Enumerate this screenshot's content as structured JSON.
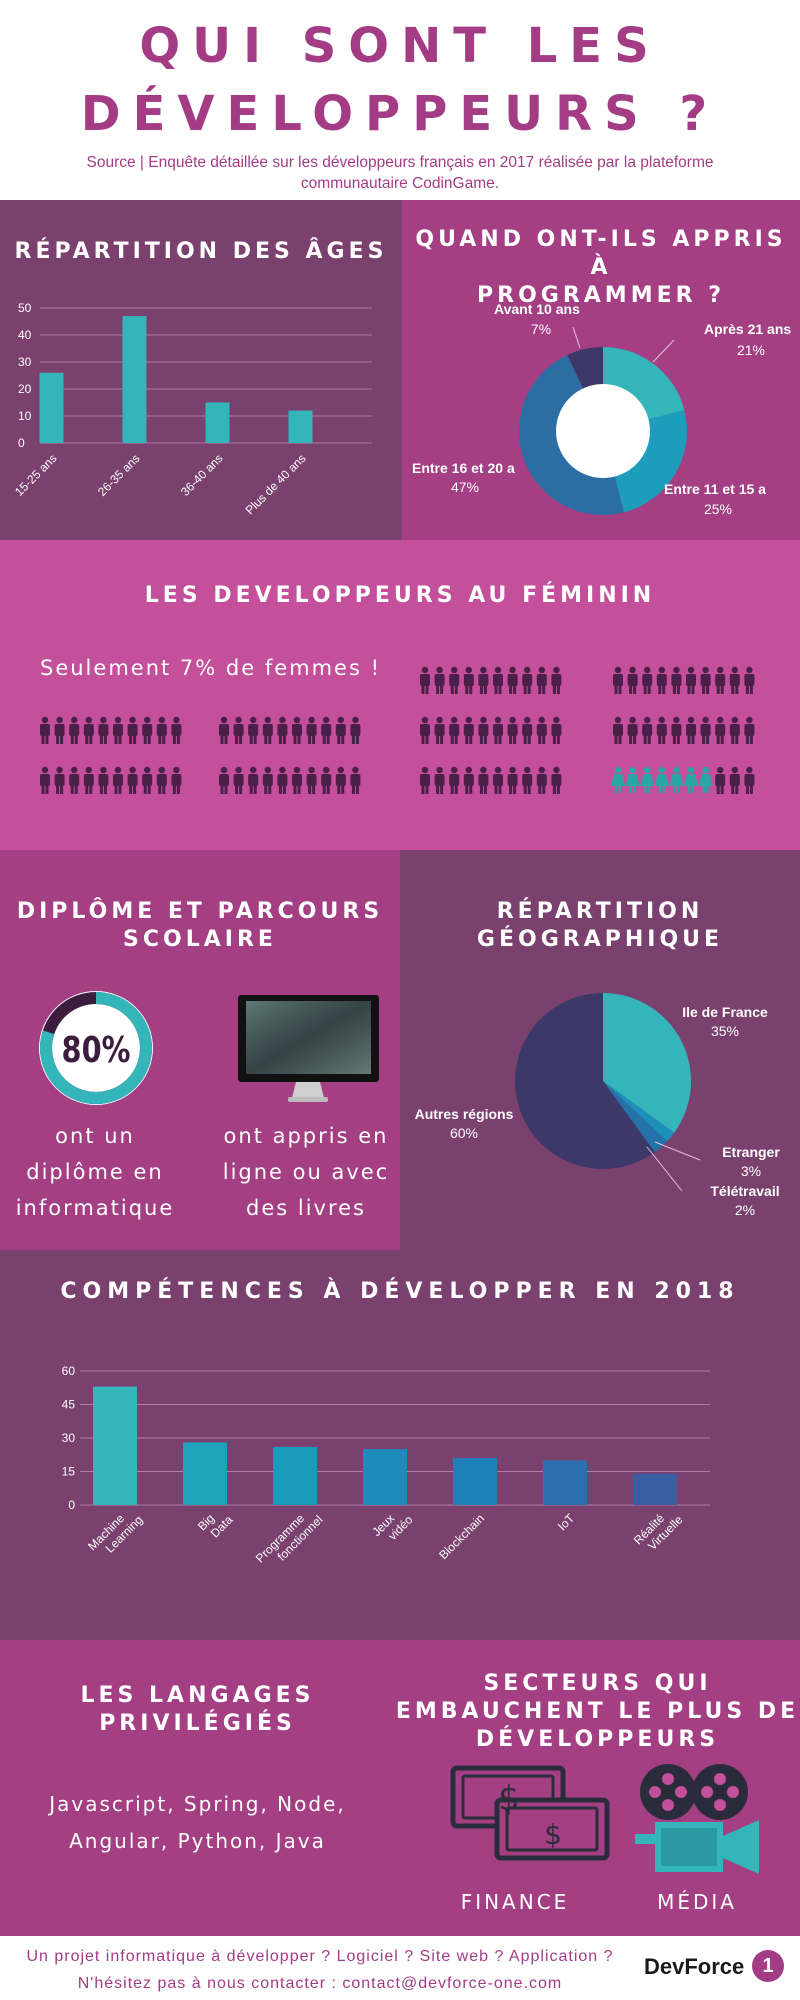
{
  "header": {
    "title_line1": "QUI SONT LES",
    "title_line2": "DÉVELOPPEURS ?",
    "source_line1": "Source | Enquête détaillée sur les développeurs français en 2017 réalisée par la plateforme",
    "source_line2": "communautaire CodinGame."
  },
  "ages": {
    "title": "RÉPARTITION DES ÂGES"
  },
  "learn": {
    "title_line1": "QUAND ONT-ILS APPRIS À",
    "title_line2": "PROGRAMMER ?",
    "labels": [
      {
        "name": "Avant 10 ans",
        "pct": "7%"
      },
      {
        "name": "Après 21 ans",
        "pct": "21%"
      },
      {
        "name": "Entre 11 et 15 a",
        "pct": "25%"
      },
      {
        "name": "Entre 16 et 20 a",
        "pct": "47%"
      }
    ]
  },
  "women": {
    "title": "LES DEVELOPPEURS AU FÉMININ",
    "subtitle": "Seulement 7% de femmes !",
    "total_people": 100,
    "women_count": 7
  },
  "diploma": {
    "title_line1": "DIPLÔME ET PARCOURS",
    "title_line2": "SCOLAIRE",
    "percent_label": "80%",
    "percent_value": 0.8,
    "text1": [
      "ont un",
      "diplôme en",
      "informatique"
    ],
    "text2": [
      "ont appris en",
      "ligne ou avec",
      "des livres"
    ]
  },
  "geo": {
    "title_line1": "RÉPARTITION",
    "title_line2": "GÉOGRAPHIQUE",
    "labels": [
      {
        "name": "Ile de France",
        "pct": "35%"
      },
      {
        "name": "Etranger",
        "pct": "3%"
      },
      {
        "name": "Télétravail",
        "pct": "2%"
      },
      {
        "name": "Autres régions",
        "pct": "60%"
      }
    ]
  },
  "skills": {
    "title": "COMPÉTENCES À DÉVELOPPER EN 2018"
  },
  "languages": {
    "title_line1": "LES LANGAGES",
    "title_line2": "PRIVILÉGIÉS",
    "line1": "Javascript, Spring, Node,",
    "line2": "Angular, Python, Java"
  },
  "sectors": {
    "title_line1": "SECTEURS QUI",
    "title_line2": "EMBAUCHENT LE PLUS DE",
    "title_line3": "DÉVELOPPEURS",
    "finance": "FINANCE",
    "media": "MÉDIA"
  },
  "footer": {
    "line1": "Un projet informatique à développer ? Logiciel ? Site web ? Application ?",
    "line2": "N'hésitez pas à nous contacter : contact@devforce-one.com",
    "logo_text": "DevForce",
    "logo_badge": "1"
  },
  "colors": {
    "purple_dark": "#7a416f",
    "magenta": "#a43f83",
    "pink": "#c44f9a",
    "teal": "#34b5b9",
    "navy": "#3c3868",
    "title": "#a43b85"
  },
  "chart_data": [
    {
      "type": "bar",
      "title": "RÉPARTITION DES ÂGES",
      "categories": [
        "15-25 ans",
        "26-35 ans",
        "36-40 ans",
        "Plus de 40 ans"
      ],
      "values": [
        26,
        47,
        15,
        12
      ],
      "ylim": [
        0,
        50
      ],
      "yticks": [
        0,
        10,
        20,
        30,
        40,
        50
      ],
      "grid": true
    },
    {
      "type": "pie",
      "title": "QUAND ONT-ILS APPRIS À PROGRAMMER ?",
      "donut": true,
      "categories": [
        "Après 21 ans",
        "Entre 11 et 15 a",
        "Entre 16 et 20 a",
        "Avant 10 ans"
      ],
      "values": [
        21,
        25,
        47,
        7
      ],
      "colors": [
        "#34b5b9",
        "#1e9cbc",
        "#2a6ea3",
        "#3c3868"
      ]
    },
    {
      "type": "pie",
      "title": "RÉPARTITION GÉOGRAPHIQUE",
      "categories": [
        "Ile de France",
        "Télétravail",
        "Etranger",
        "Autres régions"
      ],
      "values": [
        35,
        2,
        3,
        60
      ],
      "colors": [
        "#34b5b9",
        "#1d8fbb",
        "#2373a8",
        "#3c3868"
      ]
    },
    {
      "type": "bar",
      "title": "COMPÉTENCES À DÉVELOPPER EN 2018",
      "categories": [
        "Machine Learning",
        "Big Data",
        "Programme fonctionnel",
        "Jeux vidéo",
        "Blockchain",
        "IoT",
        "Réalité Virtuelle"
      ],
      "values": [
        53,
        28,
        26,
        25,
        21,
        20,
        14
      ],
      "ylim": [
        0,
        60
      ],
      "yticks": [
        0,
        15,
        30,
        45,
        60
      ],
      "grid": true,
      "colors": [
        "#34b5b9",
        "#1ea3b8",
        "#1a9bbb",
        "#1b8cbb",
        "#1f7fb8",
        "#2b6fae",
        "#3a5ca0"
      ]
    }
  ]
}
